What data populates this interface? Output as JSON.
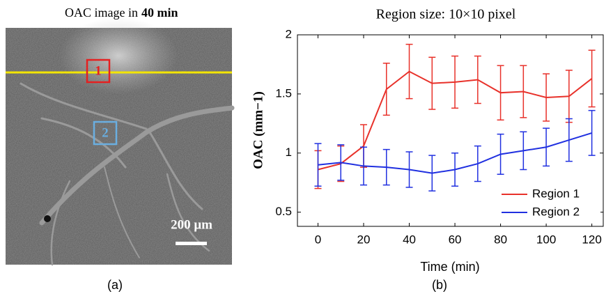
{
  "image_panel": {
    "title_prefix": "OAC image in",
    "title_bold": "40 min",
    "region_labels": [
      "1",
      "2"
    ],
    "scale_label": "200 μm",
    "caption": "(a)"
  },
  "chart_data": {
    "type": "line",
    "title": "Region size: 10×10 pixel",
    "x_label": "Time (min)",
    "y_label": "OAC (mm−1)",
    "caption": "(b)",
    "x": [
      0,
      10,
      20,
      30,
      40,
      50,
      60,
      70,
      80,
      90,
      100,
      110,
      120
    ],
    "series": [
      {
        "name": "Region 1",
        "color": "#e8312a",
        "values": [
          0.86,
          0.91,
          1.06,
          1.54,
          1.69,
          1.59,
          1.6,
          1.62,
          1.51,
          1.52,
          1.47,
          1.48,
          1.63
        ],
        "errors": [
          0.16,
          0.15,
          0.18,
          0.22,
          0.23,
          0.22,
          0.22,
          0.2,
          0.23,
          0.22,
          0.2,
          0.22,
          0.24
        ]
      },
      {
        "name": "Region 2",
        "color": "#2030e0",
        "values": [
          0.9,
          0.92,
          0.89,
          0.88,
          0.86,
          0.83,
          0.86,
          0.91,
          0.99,
          1.02,
          1.05,
          1.11,
          1.17
        ],
        "errors": [
          0.18,
          0.15,
          0.16,
          0.15,
          0.15,
          0.15,
          0.14,
          0.15,
          0.17,
          0.16,
          0.16,
          0.18,
          0.19
        ]
      }
    ],
    "xlim": [
      -9,
      125
    ],
    "ylim": [
      0.38,
      2.0
    ],
    "xticks": [
      0,
      20,
      40,
      60,
      80,
      100,
      120
    ],
    "yticks": [
      0.5,
      1,
      1.5,
      2
    ],
    "legend": "lower right"
  }
}
